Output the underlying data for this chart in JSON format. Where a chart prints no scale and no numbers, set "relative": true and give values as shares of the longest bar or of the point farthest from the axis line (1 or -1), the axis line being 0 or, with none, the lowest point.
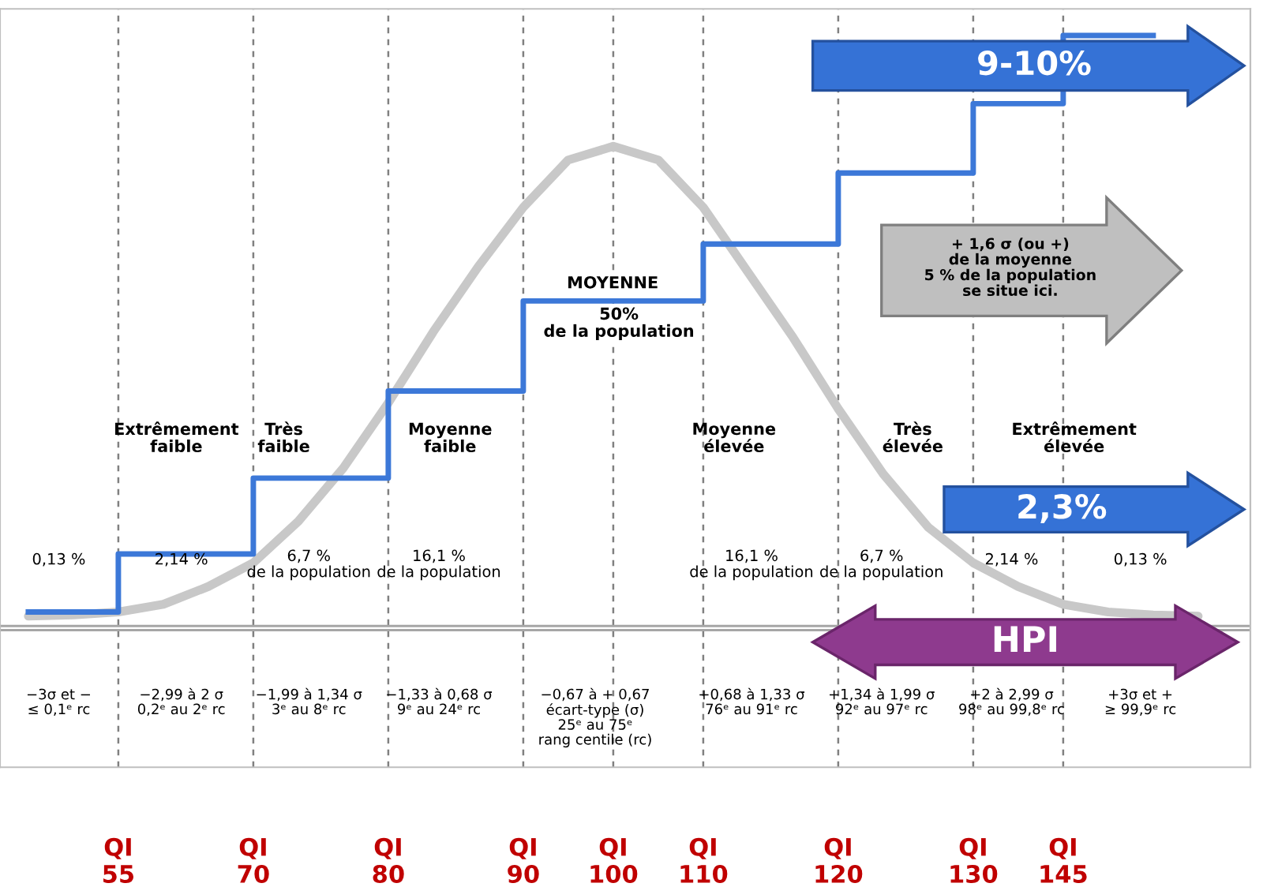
{
  "chart_data": {
    "type": "line",
    "relative": true,
    "categories": [
      null,
      null,
      "QI\n55",
      null,
      null,
      "QI\n70",
      null,
      null,
      "QI\n80",
      null,
      null,
      "QI\n90",
      null,
      "QI\n100",
      null,
      "QI\n110",
      null,
      null,
      "QI\n120",
      null,
      null,
      "QI\n130",
      null,
      "QI\n145",
      null,
      null,
      null,
      null
    ],
    "grid": "x",
    "ref_lines": [
      {
        "axis": "y",
        "value": 0,
        "color": "#a6a6a6"
      }
    ],
    "series": [
      {
        "color": "#c8c8c8",
        "values": [
          0.02,
          0.022,
          0.027,
          0.04,
          0.07,
          0.11,
          0.18,
          0.27,
          0.38,
          0.5,
          0.61,
          0.71,
          0.79,
          0.813,
          0.79,
          0.71,
          0.6,
          0.49,
          0.37,
          0.26,
          0.17,
          0.11,
          0.07,
          0.04,
          0.027,
          0.022,
          0.02,
          null
        ]
      },
      {
        "type": "step",
        "color": "#3c78d8",
        "values": [
          0.027,
          0.027,
          0.125,
          0.125,
          0.125,
          0.253,
          0.253,
          0.253,
          0.4,
          0.4,
          0.4,
          0.552,
          0.552,
          0.552,
          0.552,
          0.648,
          0.648,
          0.648,
          0.768,
          0.768,
          0.768,
          0.885,
          0.885,
          1.0,
          1.0,
          1.0,
          null,
          null
        ]
      }
    ],
    "annotations": [
      "Extrêmement\nfaible",
      "Très\nfaible",
      "Moyenne\nfaible",
      "MOYENNE",
      "50%\nde la population",
      "Moyenne\nélevée",
      "Très\nélevée",
      "Extrêmement\nélevée",
      "0,13 %",
      "2,14 %",
      "6,7 %\nde la population",
      "16,1 %\nde la population",
      "16,1 %\nde la population",
      "6,7 %\nde la population",
      "2,14 %",
      "0,13 %",
      "−3σ et −\n≤ 0,1ᵉ rc",
      "−2,99 à 2 σ\n0,2ᵉ au 2ᵉ rc",
      "−1,99 à 1,34 σ\n3ᵉ au 8ᵉ rc",
      "−1,33 à 0,68 σ\n9ᵉ au 24ᵉ rc",
      "−0,67 à + 0,67\nécart-type (σ)\n25ᵉ au 75ᵉ\nrang centile (rc)",
      "+0,68 à 1,33 σ\n76ᵉ au 91ᵉ rc",
      "+1,34 à 1,99 σ\n92ᵉ au 97ᵉ rc",
      "+2 à 2,99 σ\n98ᵉ au 99,8ᵉ rc",
      "+3σ et +\n≥ 99,9ᵉ rc",
      "9-10%",
      "+ 1,6 σ (ou +)\nde la moyenne\n5 % de la population\nse situe ici.",
      "2,3%",
      "HPI"
    ]
  }
}
